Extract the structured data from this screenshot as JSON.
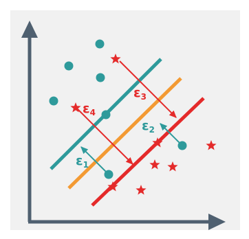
{
  "colors": {
    "axis": "#4f6070",
    "teal": "#2e9a9b",
    "orange": "#f39a33",
    "red": "#e42a2a",
    "panel": "#f1f1f1"
  },
  "labels": {
    "e1": {
      "letter": "ε",
      "sub": "1"
    },
    "e2": {
      "letter": "ε",
      "sub": "2"
    },
    "e3": {
      "letter": "ε",
      "sub": "3"
    },
    "e4": {
      "letter": "ε",
      "sub": "4"
    }
  },
  "icons": {
    "point": "circle",
    "star": "star"
  }
}
